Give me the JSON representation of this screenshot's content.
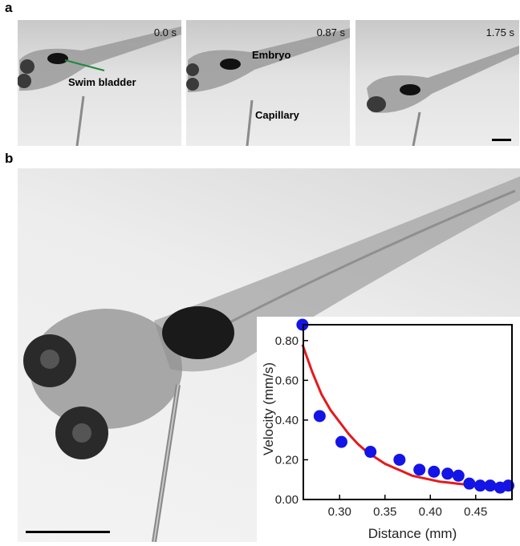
{
  "panels": {
    "a": {
      "letter": "a",
      "frames": [
        {
          "time": "0.0 s",
          "label": "Swim bladder"
        },
        {
          "time": "0.87 s",
          "labels": [
            "Embryo",
            "Capillary"
          ]
        },
        {
          "time": "1.75 s"
        }
      ]
    },
    "b": {
      "letter": "b"
    }
  },
  "colors": {
    "curve": "#e41a1c",
    "points": "#1414e6",
    "pointer_line": "#1a8a3a",
    "scalebar": "#000000"
  },
  "chart_data": {
    "type": "scatter",
    "xlabel": "Distance (mm)",
    "ylabel": "Velocity (mm/s)",
    "xlim": [
      0.26,
      0.49
    ],
    "ylim": [
      0.0,
      0.88
    ],
    "xticks": [
      "0.30",
      "0.35",
      "0.40",
      "0.45"
    ],
    "xtick_values": [
      0.3,
      0.35,
      0.4,
      0.45
    ],
    "yticks": [
      "0.00",
      "0.20",
      "0.40",
      "0.60",
      "0.80"
    ],
    "ytick_values": [
      0.0,
      0.2,
      0.4,
      0.6,
      0.8
    ],
    "grid": false,
    "series": [
      {
        "kind": "points",
        "x": [
          0.259,
          0.278,
          0.302,
          0.334,
          0.366,
          0.388,
          0.404,
          0.419,
          0.431,
          0.443,
          0.455,
          0.466,
          0.477,
          0.486
        ],
        "y": [
          0.88,
          0.42,
          0.29,
          0.24,
          0.2,
          0.15,
          0.14,
          0.13,
          0.12,
          0.08,
          0.07,
          0.07,
          0.06,
          0.07
        ]
      },
      {
        "kind": "fit-curve",
        "x": [
          0.259,
          0.27,
          0.28,
          0.29,
          0.3,
          0.31,
          0.32,
          0.33,
          0.34,
          0.35,
          0.36,
          0.37,
          0.38,
          0.39,
          0.4,
          0.41,
          0.42,
          0.43,
          0.44,
          0.45,
          0.46,
          0.47,
          0.48,
          0.487
        ],
        "y": [
          0.78,
          0.64,
          0.53,
          0.45,
          0.39,
          0.33,
          0.28,
          0.24,
          0.21,
          0.18,
          0.16,
          0.14,
          0.12,
          0.11,
          0.1,
          0.09,
          0.085,
          0.08,
          0.075,
          0.07,
          0.066,
          0.064,
          0.062,
          0.061
        ]
      }
    ]
  }
}
